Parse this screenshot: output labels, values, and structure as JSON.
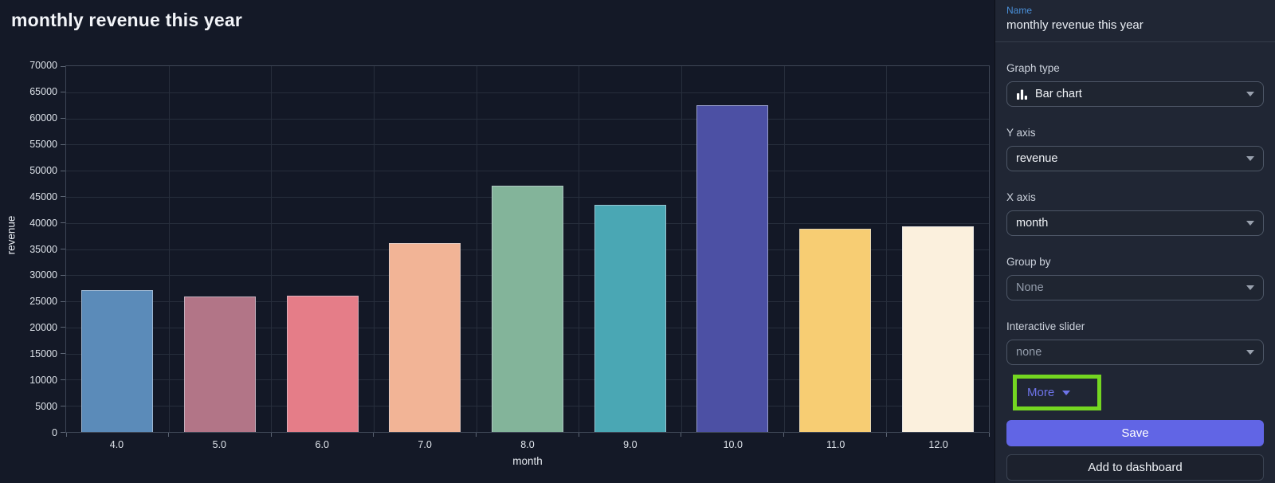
{
  "chart_data": {
    "type": "bar",
    "title": "monthly revenue this year",
    "categories": [
      "4.0",
      "5.0",
      "6.0",
      "7.0",
      "8.0",
      "9.0",
      "10.0",
      "11.0",
      "12.0"
    ],
    "values": [
      27100,
      26000,
      26100,
      36200,
      47200,
      43400,
      62500,
      38900,
      39400
    ],
    "bar_colors": [
      "#5b8bb9",
      "#b27587",
      "#e57d88",
      "#f2b496",
      "#83b49a",
      "#4aa7b4",
      "#4c50a4",
      "#f7cd73",
      "#fbf0dd"
    ],
    "xlabel": "month",
    "ylabel": "revenue",
    "ylim": [
      0,
      70000
    ],
    "ytick_step": 5000,
    "grid": true,
    "legend": false
  },
  "panel": {
    "name_label": "Name",
    "name_value": "monthly revenue this year",
    "fields": [
      {
        "label": "Graph type",
        "value": "Bar chart",
        "icon": "bar-chart-icon"
      },
      {
        "label": "Y axis",
        "value": "revenue"
      },
      {
        "label": "X axis",
        "value": "month"
      },
      {
        "label": "Group by",
        "value": "None"
      },
      {
        "label": "Interactive slider",
        "value": "none"
      }
    ],
    "more_label": "More",
    "save_label": "Save",
    "add_label": "Add to dashboard",
    "colors": {
      "accent": "#6165e5",
      "more_link": "#6e74ea",
      "highlight_box": "#74d621",
      "name_label": "#4a90d9"
    }
  }
}
